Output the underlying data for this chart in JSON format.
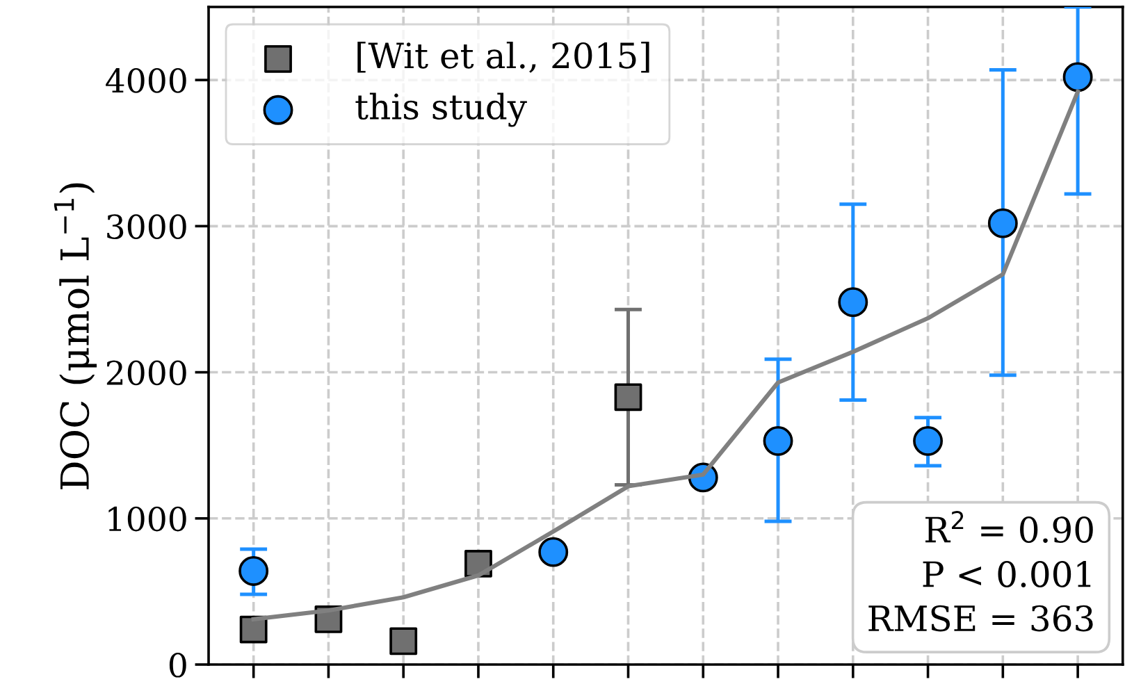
{
  "chart_data": {
    "type": "scatter",
    "ylabel": "DOC (μmol L$^{−1}$)",
    "categories": [
      null,
      null,
      null,
      null,
      null,
      null,
      null,
      null,
      null,
      null,
      null,
      null
    ],
    "ylim": [
      0,
      4500
    ],
    "yticks": [
      0,
      1000,
      2000,
      3000,
      4000
    ],
    "tick_labels": "y",
    "grid": true,
    "legend": "top left",
    "series": [
      {
        "type": "line",
        "color": "#808080",
        "values": [
          310,
          370,
          460,
          610,
          910,
          1220,
          1300,
          1930,
          2140,
          2370,
          2670,
          3920
        ],
        "marker": "none",
        "line_style": "solid"
      },
      {
        "name": "[Wit et al., 2015]",
        "color": "#707070",
        "marker": "square",
        "values": [
          240,
          310,
          160,
          690,
          null,
          1830,
          null,
          null,
          null,
          null,
          null,
          null
        ],
        "errors": [
          null,
          null,
          null,
          null,
          null,
          600,
          null,
          null,
          null,
          null,
          null,
          null
        ]
      },
      {
        "name": "this study",
        "color": "#1e90ff",
        "marker": "circle",
        "values": [
          640,
          null,
          null,
          null,
          770,
          null,
          1280,
          1530,
          2480,
          1530,
          3020,
          4020
        ],
        "errors": [
          [
            480,
            790
          ],
          null,
          null,
          null,
          null,
          null,
          null,
          [
            980,
            2090
          ],
          [
            1810,
            3150
          ],
          [
            1360,
            1690
          ],
          [
            1980,
            4070
          ],
          [
            3220,
            4500
          ]
        ]
      }
    ],
    "annotations": [
      "R$^{2}$ = 0.90\nP < 0.001\nRMSE = 363"
    ]
  }
}
